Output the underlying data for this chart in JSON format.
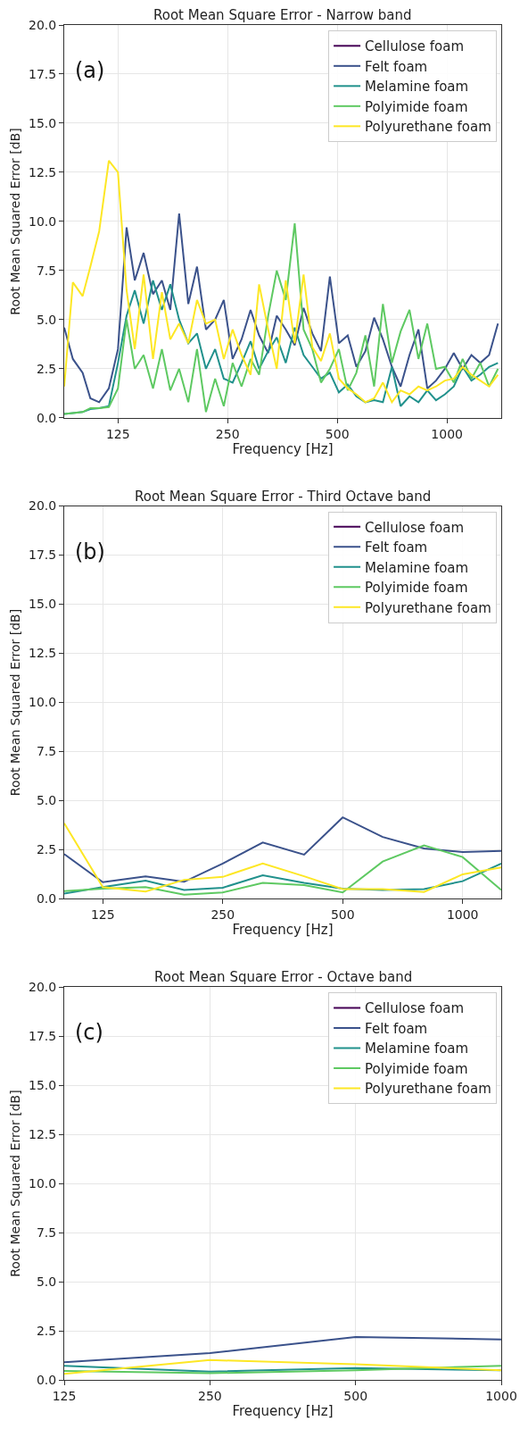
{
  "chart_data": [
    {
      "type": "line",
      "title": "Root Mean Square Error - Narrow band",
      "xlabel": "Frequency [Hz]",
      "ylabel": "Root Mean Squared Error [dB]",
      "annotations": [
        "(a)"
      ],
      "log": "x",
      "grid": true,
      "legend": "top right",
      "xlim": [
        89,
        1409
      ],
      "xticks": [
        125,
        250,
        500,
        1000
      ],
      "ylim": [
        0,
        20
      ],
      "yticks": [
        {
          "value": 0,
          "label": "0.0"
        },
        {
          "value": 2.5,
          "label": "2.5"
        },
        {
          "value": 5,
          "label": "5.0"
        },
        {
          "value": 7.5,
          "label": "7.5"
        },
        {
          "value": 10,
          "label": "10.0"
        },
        {
          "value": 12.5,
          "label": "12.5"
        },
        {
          "value": 15,
          "label": "15.0"
        },
        {
          "value": 17.5,
          "label": "17.5"
        },
        {
          "value": 20,
          "label": "20.0"
        }
      ],
      "x": [
        89,
        94,
        100,
        105,
        111,
        118,
        125,
        132,
        139,
        147,
        156,
        165,
        174,
        184,
        195,
        206,
        218,
        231,
        244,
        258,
        273,
        289,
        305,
        323,
        341,
        361,
        382,
        404,
        427,
        451,
        477,
        505,
        534,
        564,
        597,
        631,
        667,
        706,
        746,
        789,
        835,
        883,
        933,
        987,
        1044,
        1104,
        1167,
        1234,
        1305,
        1380
      ],
      "series": [
        {
          "name": "Cellulose foam",
          "color": "#440154",
          "values": [
            null,
            null,
            null,
            null,
            null,
            null,
            null,
            null,
            null,
            null,
            null,
            null,
            null,
            null,
            null,
            null,
            null,
            null,
            null,
            null,
            null,
            null,
            null,
            null,
            null,
            null,
            null,
            null,
            null,
            null,
            null,
            null,
            null,
            null,
            null,
            null,
            null,
            null,
            null,
            null,
            null,
            null,
            null,
            null,
            null,
            null,
            null,
            null,
            null,
            null
          ]
        },
        {
          "name": "Felt foam",
          "color": "#3b528b",
          "values": [
            4.6,
            3.0,
            2.3,
            1.0,
            0.8,
            1.5,
            3.5,
            9.7,
            7.0,
            8.4,
            6.3,
            7.0,
            5.5,
            10.4,
            5.8,
            7.7,
            4.5,
            5.0,
            6.0,
            3.0,
            4.0,
            5.5,
            4.2,
            3.3,
            5.2,
            4.5,
            3.7,
            5.6,
            4.3,
            3.4,
            7.2,
            3.8,
            4.2,
            2.6,
            3.4,
            5.1,
            4.0,
            2.6,
            1.6,
            3.2,
            4.5,
            1.5,
            1.9,
            2.5,
            3.3,
            2.5,
            3.2,
            2.8,
            3.2,
            4.8
          ]
        },
        {
          "name": "Melamine foam",
          "color": "#21918c",
          "values": [
            0.2,
            0.25,
            0.3,
            0.45,
            0.5,
            0.6,
            2.8,
            5.2,
            6.5,
            4.8,
            7.0,
            5.5,
            6.8,
            5.0,
            3.8,
            4.3,
            2.5,
            3.5,
            2.0,
            1.8,
            2.8,
            3.9,
            2.5,
            3.4,
            4.1,
            2.8,
            4.6,
            3.2,
            2.6,
            2.0,
            2.3,
            1.3,
            1.7,
            1.1,
            0.8,
            0.9,
            0.8,
            2.6,
            0.6,
            1.1,
            0.8,
            1.4,
            0.9,
            1.2,
            1.6,
            2.6,
            1.9,
            2.2,
            2.6,
            2.8
          ]
        },
        {
          "name": "Polyimide foam",
          "color": "#5ec962",
          "values": [
            0.2,
            0.25,
            0.3,
            0.5,
            0.5,
            0.55,
            1.5,
            5.0,
            2.5,
            3.2,
            1.5,
            3.5,
            1.4,
            2.5,
            0.8,
            3.5,
            0.3,
            2.0,
            0.6,
            2.8,
            1.6,
            3.0,
            2.2,
            5.2,
            7.5,
            6.0,
            9.9,
            4.5,
            3.5,
            1.8,
            2.5,
            3.5,
            1.4,
            2.3,
            4.2,
            1.6,
            5.8,
            2.8,
            4.4,
            5.5,
            3.0,
            4.8,
            2.5,
            2.6,
            1.8,
            3.0,
            2.0,
            2.8,
            1.6,
            2.5
          ]
        },
        {
          "name": "Polyurethane foam",
          "color": "#fde725",
          "values": [
            1.6,
            6.9,
            6.2,
            7.7,
            9.5,
            13.1,
            12.5,
            6.5,
            3.5,
            7.3,
            3.0,
            6.4,
            4.0,
            4.8,
            3.8,
            6.0,
            4.8,
            5.0,
            3.0,
            4.5,
            3.2,
            2.2,
            6.8,
            4.5,
            2.5,
            7.0,
            3.8,
            7.3,
            3.6,
            2.9,
            4.3,
            2.0,
            1.5,
            1.2,
            0.8,
            1.0,
            1.8,
            0.8,
            1.4,
            1.2,
            1.6,
            1.4,
            1.6,
            1.9,
            2.0,
            2.6,
            2.2,
            1.9,
            1.6,
            2.2
          ]
        }
      ]
    },
    {
      "type": "line",
      "title": "Root Mean Square Error - Third Octave band",
      "xlabel": "Frequency [Hz]",
      "ylabel": "Root Mean Squared Error [dB]",
      "annotations": [
        "(b)"
      ],
      "log": "x",
      "grid": true,
      "legend": "top right",
      "xlim": [
        100,
        1250
      ],
      "xticks": [
        125,
        250,
        500,
        1000
      ],
      "ylim": [
        0,
        20
      ],
      "yticks": [
        {
          "value": 0,
          "label": "0.0"
        },
        {
          "value": 2.5,
          "label": "2.5"
        },
        {
          "value": 5,
          "label": "5.0"
        },
        {
          "value": 7.5,
          "label": "7.5"
        },
        {
          "value": 10,
          "label": "10.0"
        },
        {
          "value": 12.5,
          "label": "12.5"
        },
        {
          "value": 15,
          "label": "15.0"
        },
        {
          "value": 17.5,
          "label": "17.5"
        },
        {
          "value": 20,
          "label": "20.0"
        }
      ],
      "x": [
        100,
        125,
        160,
        200,
        250,
        315,
        400,
        500,
        630,
        800,
        1000,
        1250
      ],
      "series": [
        {
          "name": "Cellulose foam",
          "color": "#440154",
          "values": [
            null,
            null,
            null,
            null,
            null,
            null,
            null,
            null,
            null,
            null,
            null,
            null
          ]
        },
        {
          "name": "Felt foam",
          "color": "#3b528b",
          "values": [
            2.28,
            0.85,
            1.15,
            0.87,
            1.8,
            2.87,
            2.25,
            4.15,
            3.15,
            2.57,
            2.38,
            2.44
          ]
        },
        {
          "name": "Melamine foam",
          "color": "#21918c",
          "values": [
            0.27,
            0.6,
            0.93,
            0.45,
            0.57,
            1.2,
            0.82,
            0.52,
            0.45,
            0.5,
            0.9,
            1.8
          ]
        },
        {
          "name": "Polyimide foam",
          "color": "#5ec962",
          "values": [
            0.4,
            0.52,
            0.6,
            0.22,
            0.33,
            0.82,
            0.7,
            0.33,
            1.9,
            2.72,
            2.13,
            0.45
          ]
        },
        {
          "name": "Polyurethane foam",
          "color": "#fde725",
          "values": [
            3.85,
            0.6,
            0.37,
            0.97,
            1.12,
            1.8,
            1.15,
            0.5,
            0.5,
            0.35,
            1.25,
            1.6
          ]
        }
      ]
    },
    {
      "type": "line",
      "title": "Root Mean Square Error - Octave band",
      "xlabel": "Frequency [Hz]",
      "ylabel": "Root Mean Squared Error [dB]",
      "annotations": [
        "(c)"
      ],
      "log": "x",
      "grid": true,
      "legend": "top right",
      "xlim": [
        125,
        1000
      ],
      "xticks": [
        125,
        250,
        500,
        1000
      ],
      "ylim": [
        0,
        20
      ],
      "yticks": [
        {
          "value": 0,
          "label": "0.0"
        },
        {
          "value": 2.5,
          "label": "2.5"
        },
        {
          "value": 5,
          "label": "5.0"
        },
        {
          "value": 7.5,
          "label": "7.5"
        },
        {
          "value": 10,
          "label": "10.0"
        },
        {
          "value": 12.5,
          "label": "12.5"
        },
        {
          "value": 15,
          "label": "15.0"
        },
        {
          "value": 17.5,
          "label": "17.5"
        },
        {
          "value": 20,
          "label": "20.0"
        }
      ],
      "x": [
        125,
        250,
        500,
        1000
      ],
      "series": [
        {
          "name": "Cellulose foam",
          "color": "#440154",
          "values": [
            null,
            null,
            null,
            null
          ]
        },
        {
          "name": "Felt foam",
          "color": "#3b528b",
          "values": [
            0.9,
            1.36,
            2.18,
            2.06
          ]
        },
        {
          "name": "Melamine foam",
          "color": "#21918c",
          "values": [
            0.72,
            0.42,
            0.6,
            0.49
          ]
        },
        {
          "name": "Polyimide foam",
          "color": "#5ec962",
          "values": [
            0.45,
            0.34,
            0.49,
            0.72
          ]
        },
        {
          "name": "Polyurethane foam",
          "color": "#fde725",
          "values": [
            0.31,
            1.01,
            0.79,
            0.49
          ]
        }
      ]
    }
  ]
}
